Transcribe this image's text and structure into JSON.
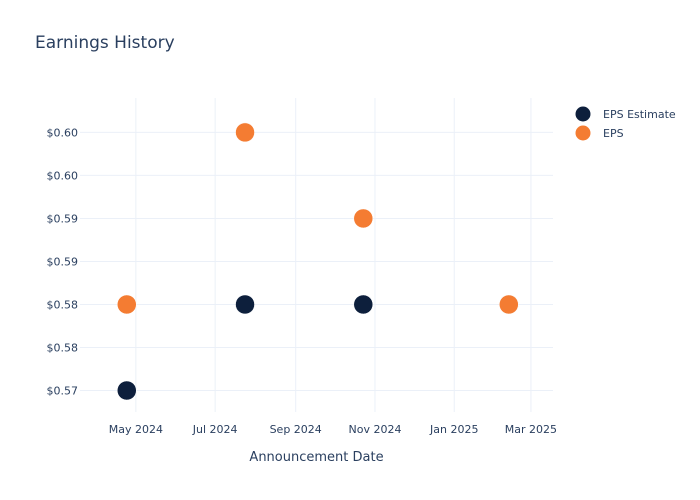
{
  "chart_data": {
    "type": "scatter",
    "title": "Earnings History",
    "xlabel": "Announcement Date",
    "ylabel": "",
    "x_tick_labels": [
      "May 2024",
      "Jul 2024",
      "Sep 2024",
      "Nov 2024",
      "Jan 2025",
      "Mar 2025"
    ],
    "x_tick_dates": [
      "2024-05-01",
      "2024-07-01",
      "2024-09-01",
      "2024-11-01",
      "2025-01-01",
      "2025-03-01"
    ],
    "xlim": [
      "2024-03-19",
      "2025-03-18"
    ],
    "y_tick_labels": [
      "$0.57",
      "$0.58",
      "$0.58",
      "$0.59",
      "$0.59",
      "$0.60",
      "$0.60"
    ],
    "y_tick_values": [
      0.57,
      0.575,
      0.58,
      0.585,
      0.59,
      0.595,
      0.6
    ],
    "ylim": [
      0.5675,
      0.604
    ],
    "grid": true,
    "legend_position": "top-right",
    "x": [
      "2024-04-24",
      "2024-07-24",
      "2024-10-23",
      "2025-02-12"
    ],
    "series": [
      {
        "name": "EPS Estimate",
        "color": "#0d1f3c",
        "values": [
          0.57,
          0.58,
          0.58,
          0.58
        ]
      },
      {
        "name": "EPS",
        "color": "#f47c32",
        "values": [
          0.58,
          0.6,
          0.59,
          0.58
        ]
      }
    ]
  }
}
